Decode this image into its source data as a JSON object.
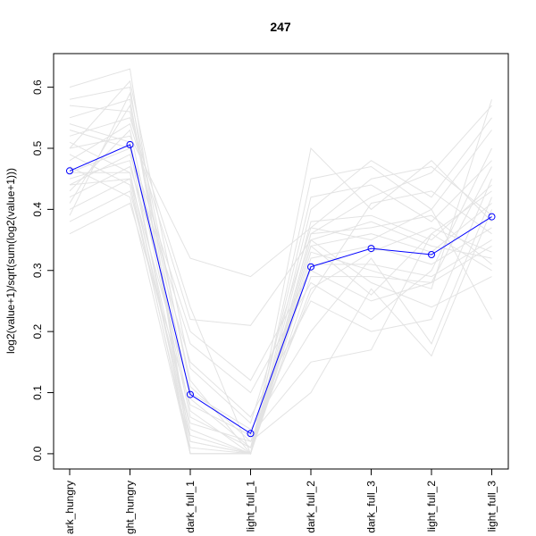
{
  "chart_data": {
    "type": "line",
    "title": "247",
    "xlabel": "",
    "ylabel": "log2(value+1)/sqrt(sum(log2(value+1)))",
    "categories": [
      "dark_hungry",
      "light_hungry",
      "dark_full_1",
      "light_full_1",
      "dark_full_2",
      "dark_full_3",
      "light_full_2",
      "light_full_3"
    ],
    "category_labels_visible": [
      "ark_hungry",
      "ght_hungry",
      "dark_full_1",
      "light_full_1",
      "dark_full_2",
      "dark_full_3",
      "light_full_2",
      "light_full_3"
    ],
    "yticks": [
      "0.0",
      "0.1",
      "0.2",
      "0.3",
      "0.4",
      "0.5",
      "0.6"
    ],
    "ylim": [
      -0.025,
      0.655
    ],
    "grid": false,
    "legend": "none",
    "colors": {
      "highlight": "#0000ff",
      "background": "#e3e3e3"
    },
    "series": [
      {
        "highlight": true,
        "values": [
          0.463,
          0.506,
          0.097,
          0.033,
          0.306,
          0.336,
          0.326,
          0.388
        ]
      },
      {
        "highlight": false,
        "values": [
          0.6,
          0.63,
          0.0,
          0.0,
          0.36,
          0.42,
          0.46,
          0.57
        ]
      },
      {
        "highlight": false,
        "values": [
          0.58,
          0.6,
          0.0,
          0.0,
          0.5,
          0.4,
          0.48,
          0.38
        ]
      },
      {
        "highlight": false,
        "values": [
          0.55,
          0.58,
          0.02,
          0.0,
          0.4,
          0.48,
          0.42,
          0.55
        ]
      },
      {
        "highlight": false,
        "values": [
          0.52,
          0.55,
          0.24,
          0.0,
          0.33,
          0.3,
          0.27,
          0.58
        ]
      },
      {
        "highlight": false,
        "values": [
          0.5,
          0.52,
          0.32,
          0.29,
          0.37,
          0.35,
          0.4,
          0.22
        ]
      },
      {
        "highlight": false,
        "values": [
          0.48,
          0.54,
          0.22,
          0.21,
          0.35,
          0.38,
          0.34,
          0.32
        ]
      },
      {
        "highlight": false,
        "values": [
          0.46,
          0.5,
          0.2,
          0.12,
          0.3,
          0.25,
          0.28,
          0.47
        ]
      },
      {
        "highlight": false,
        "values": [
          0.44,
          0.49,
          0.18,
          0.1,
          0.28,
          0.22,
          0.3,
          0.5
        ]
      },
      {
        "highlight": false,
        "values": [
          0.42,
          0.47,
          0.15,
          0.06,
          0.25,
          0.2,
          0.22,
          0.45
        ]
      },
      {
        "highlight": false,
        "values": [
          0.4,
          0.45,
          0.1,
          0.04,
          0.2,
          0.32,
          0.18,
          0.42
        ]
      },
      {
        "highlight": false,
        "values": [
          0.38,
          0.43,
          0.05,
          0.02,
          0.1,
          0.27,
          0.16,
          0.4
        ]
      },
      {
        "highlight": false,
        "values": [
          0.36,
          0.41,
          0.08,
          0.03,
          0.15,
          0.17,
          0.36,
          0.3
        ]
      },
      {
        "highlight": false,
        "values": [
          0.57,
          0.56,
          0.12,
          0.0,
          0.45,
          0.47,
          0.4,
          0.53
        ]
      },
      {
        "highlight": false,
        "values": [
          0.54,
          0.51,
          0.06,
          0.01,
          0.42,
          0.44,
          0.38,
          0.48
        ]
      },
      {
        "highlight": false,
        "values": [
          0.51,
          0.46,
          0.03,
          0.0,
          0.38,
          0.39,
          0.35,
          0.44
        ]
      },
      {
        "highlight": false,
        "values": [
          0.49,
          0.44,
          0.01,
          0.0,
          0.34,
          0.36,
          0.33,
          0.41
        ]
      },
      {
        "highlight": false,
        "values": [
          0.47,
          0.42,
          0.0,
          0.0,
          0.32,
          0.34,
          0.31,
          0.37
        ]
      },
      {
        "highlight": false,
        "values": [
          0.45,
          0.48,
          0.04,
          0.0,
          0.31,
          0.31,
          0.29,
          0.35
        ]
      },
      {
        "highlight": false,
        "values": [
          0.43,
          0.53,
          0.07,
          0.0,
          0.29,
          0.29,
          0.28,
          0.34
        ]
      },
      {
        "highlight": false,
        "values": [
          0.41,
          0.57,
          0.09,
          0.01,
          0.27,
          0.33,
          0.37,
          0.33
        ]
      },
      {
        "highlight": false,
        "values": [
          0.39,
          0.59,
          0.11,
          0.02,
          0.26,
          0.41,
          0.43,
          0.36
        ]
      },
      {
        "highlight": false,
        "values": [
          0.5,
          0.61,
          0.14,
          0.05,
          0.37,
          0.45,
          0.47,
          0.39
        ]
      },
      {
        "highlight": false,
        "values": [
          0.53,
          0.5,
          0.0,
          0.0,
          0.36,
          0.37,
          0.39,
          0.31
        ]
      },
      {
        "highlight": false,
        "values": [
          0.46,
          0.46,
          0.02,
          0.0,
          0.35,
          0.28,
          0.24,
          0.29
        ]
      },
      {
        "highlight": false,
        "values": [
          0.44,
          0.45,
          0.0,
          0.0,
          0.34,
          0.26,
          0.36,
          0.43
        ]
      }
    ]
  }
}
